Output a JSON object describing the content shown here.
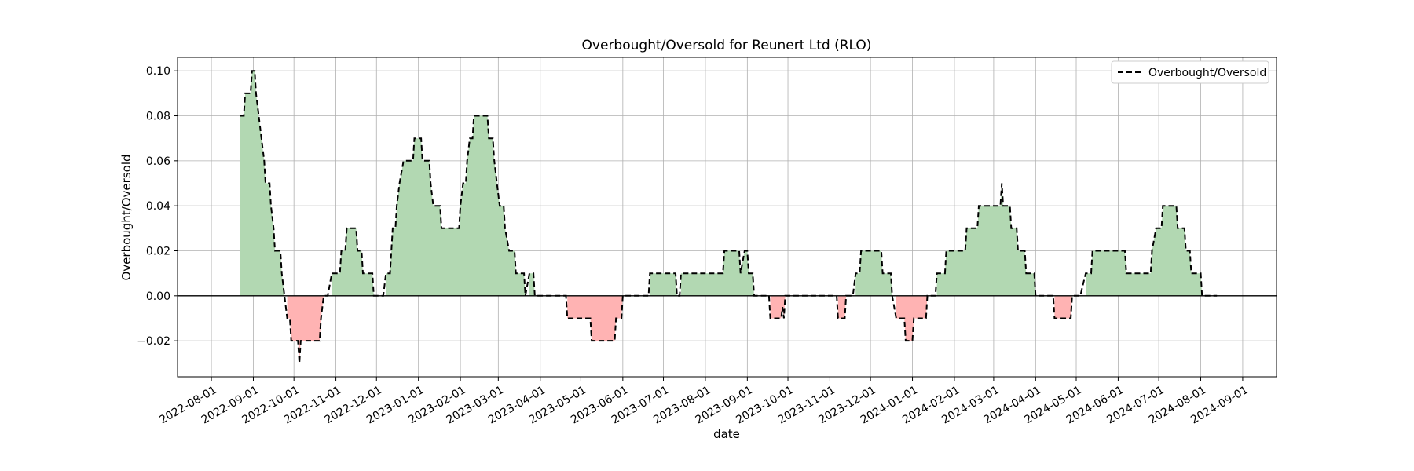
{
  "chart_data": {
    "type": "area",
    "title": "Overbought/Oversold for Reunert Ltd (RLO)",
    "xlabel": "date",
    "ylabel": "Overbought/Oversold",
    "legend": {
      "entries": [
        "Overbought/Oversold"
      ],
      "placement": "top-right"
    },
    "grid": true,
    "xlim": [
      "2022-07-07",
      "2024-09-26"
    ],
    "ylim": [
      -0.036,
      0.106
    ],
    "x_ticks": [
      "2022-08-01",
      "2022-09-01",
      "2022-10-01",
      "2022-11-01",
      "2022-12-01",
      "2023-01-01",
      "2023-02-01",
      "2023-03-01",
      "2023-04-01",
      "2023-05-01",
      "2023-06-01",
      "2023-07-01",
      "2023-08-01",
      "2023-09-01",
      "2023-10-01",
      "2023-11-01",
      "2023-12-01",
      "2024-01-01",
      "2024-02-01",
      "2024-03-01",
      "2024-04-01",
      "2024-05-01",
      "2024-06-01",
      "2024-07-01",
      "2024-08-01",
      "2024-09-01"
    ],
    "y_ticks": [
      -0.02,
      0.0,
      0.02,
      0.04,
      0.06,
      0.08,
      0.1
    ],
    "y_tick_labels": [
      "−0.02",
      "0.00",
      "0.02",
      "0.04",
      "0.06",
      "0.08",
      "0.10"
    ],
    "fill_positive_color": "#b2d8b2",
    "fill_negative_color": "#ffb3b3",
    "series": [
      {
        "name": "Overbought/Oversold",
        "line_color": "#000000",
        "line_style": "dashed",
        "points": [
          [
            "2022-08-22",
            0.08
          ],
          [
            "2022-08-25",
            0.08
          ],
          [
            "2022-08-26",
            0.09
          ],
          [
            "2022-08-30",
            0.09
          ],
          [
            "2022-08-31",
            0.1
          ],
          [
            "2022-09-02",
            0.1
          ],
          [
            "2022-09-03",
            0.09
          ],
          [
            "2022-09-05",
            0.08
          ],
          [
            "2022-09-07",
            0.07
          ],
          [
            "2022-09-09",
            0.06
          ],
          [
            "2022-09-10",
            0.05
          ],
          [
            "2022-09-13",
            0.05
          ],
          [
            "2022-09-14",
            0.04
          ],
          [
            "2022-09-16",
            0.03
          ],
          [
            "2022-09-17",
            0.02
          ],
          [
            "2022-09-21",
            0.02
          ],
          [
            "2022-09-22",
            0.01
          ],
          [
            "2022-09-24",
            0.0
          ],
          [
            "2022-09-26",
            -0.01
          ],
          [
            "2022-09-28",
            -0.01
          ],
          [
            "2022-09-29",
            -0.02
          ],
          [
            "2022-10-04",
            -0.02
          ],
          [
            "2022-10-05",
            -0.03
          ],
          [
            "2022-10-06",
            -0.02
          ],
          [
            "2022-10-20",
            -0.02
          ],
          [
            "2022-10-21",
            -0.01
          ],
          [
            "2022-10-23",
            0.0
          ],
          [
            "2022-10-26",
            0.0
          ],
          [
            "2022-10-29",
            0.01
          ],
          [
            "2022-11-04",
            0.01
          ],
          [
            "2022-11-05",
            0.02
          ],
          [
            "2022-11-08",
            0.02
          ],
          [
            "2022-11-09",
            0.03
          ],
          [
            "2022-11-16",
            0.03
          ],
          [
            "2022-11-17",
            0.02
          ],
          [
            "2022-11-20",
            0.02
          ],
          [
            "2022-11-21",
            0.01
          ],
          [
            "2022-11-28",
            0.01
          ],
          [
            "2022-11-29",
            0.0
          ],
          [
            "2022-12-06",
            0.0
          ],
          [
            "2022-12-08",
            0.01
          ],
          [
            "2022-12-11",
            0.01
          ],
          [
            "2022-12-12",
            0.02
          ],
          [
            "2022-12-13",
            0.03
          ],
          [
            "2022-12-15",
            0.03
          ],
          [
            "2022-12-16",
            0.04
          ],
          [
            "2022-12-18",
            0.05
          ],
          [
            "2022-12-21",
            0.06
          ],
          [
            "2022-12-28",
            0.06
          ],
          [
            "2022-12-29",
            0.07
          ],
          [
            "2023-01-03",
            0.07
          ],
          [
            "2023-01-04",
            0.06
          ],
          [
            "2023-01-09",
            0.06
          ],
          [
            "2023-01-10",
            0.05
          ],
          [
            "2023-01-12",
            0.04
          ],
          [
            "2023-01-17",
            0.04
          ],
          [
            "2023-01-18",
            0.03
          ],
          [
            "2023-01-31",
            0.03
          ],
          [
            "2023-02-01",
            0.04
          ],
          [
            "2023-02-03",
            0.05
          ],
          [
            "2023-02-05",
            0.05
          ],
          [
            "2023-02-06",
            0.06
          ],
          [
            "2023-02-08",
            0.07
          ],
          [
            "2023-02-10",
            0.07
          ],
          [
            "2023-02-11",
            0.08
          ],
          [
            "2023-02-21",
            0.08
          ],
          [
            "2023-02-22",
            0.07
          ],
          [
            "2023-02-25",
            0.07
          ],
          [
            "2023-02-26",
            0.06
          ],
          [
            "2023-02-28",
            0.05
          ],
          [
            "2023-03-02",
            0.04
          ],
          [
            "2023-03-05",
            0.04
          ],
          [
            "2023-03-06",
            0.03
          ],
          [
            "2023-03-09",
            0.02
          ],
          [
            "2023-03-13",
            0.02
          ],
          [
            "2023-03-14",
            0.01
          ],
          [
            "2023-03-20",
            0.01
          ],
          [
            "2023-03-21",
            0.0
          ],
          [
            "2023-03-24",
            0.01
          ],
          [
            "2023-03-27",
            0.01
          ],
          [
            "2023-03-28",
            0.0
          ],
          [
            "2023-04-20",
            0.0
          ],
          [
            "2023-04-21",
            -0.01
          ],
          [
            "2023-05-08",
            -0.01
          ],
          [
            "2023-05-09",
            -0.02
          ],
          [
            "2023-05-26",
            -0.02
          ],
          [
            "2023-05-27",
            -0.01
          ],
          [
            "2023-05-31",
            -0.01
          ],
          [
            "2023-06-01",
            0.0
          ],
          [
            "2023-06-20",
            0.0
          ],
          [
            "2023-06-21",
            0.01
          ],
          [
            "2023-07-10",
            0.01
          ],
          [
            "2023-07-11",
            0.0
          ],
          [
            "2023-07-13",
            0.0
          ],
          [
            "2023-07-14",
            0.01
          ],
          [
            "2023-08-14",
            0.01
          ],
          [
            "2023-08-15",
            0.02
          ],
          [
            "2023-08-26",
            0.02
          ],
          [
            "2023-08-27",
            0.01
          ],
          [
            "2023-08-30",
            0.02
          ],
          [
            "2023-09-01",
            0.02
          ],
          [
            "2023-09-02",
            0.01
          ],
          [
            "2023-09-05",
            0.01
          ],
          [
            "2023-09-06",
            0.0
          ],
          [
            "2023-09-17",
            0.0
          ],
          [
            "2023-09-18",
            -0.01
          ],
          [
            "2023-09-26",
            -0.01
          ],
          [
            "2023-09-27",
            -0.005
          ],
          [
            "2023-09-28",
            -0.01
          ],
          [
            "2023-09-29",
            0.0
          ],
          [
            "2023-11-06",
            0.0
          ],
          [
            "2023-11-07",
            -0.01
          ],
          [
            "2023-11-12",
            -0.01
          ],
          [
            "2023-11-13",
            0.0
          ],
          [
            "2023-11-18",
            0.0
          ],
          [
            "2023-11-20",
            0.01
          ],
          [
            "2023-11-23",
            0.01
          ],
          [
            "2023-11-24",
            0.02
          ],
          [
            "2023-12-09",
            0.02
          ],
          [
            "2023-12-10",
            0.01
          ],
          [
            "2023-12-16",
            0.01
          ],
          [
            "2023-12-17",
            0.0
          ],
          [
            "2023-12-20",
            -0.01
          ],
          [
            "2023-12-26",
            -0.01
          ],
          [
            "2023-12-27",
            -0.02
          ],
          [
            "2024-01-01",
            -0.02
          ],
          [
            "2024-01-02",
            -0.01
          ],
          [
            "2024-01-11",
            -0.01
          ],
          [
            "2024-01-12",
            0.0
          ],
          [
            "2024-01-18",
            0.0
          ],
          [
            "2024-01-19",
            0.01
          ],
          [
            "2024-01-25",
            0.01
          ],
          [
            "2024-01-26",
            0.02
          ],
          [
            "2024-02-09",
            0.02
          ],
          [
            "2024-02-10",
            0.03
          ],
          [
            "2024-02-18",
            0.03
          ],
          [
            "2024-02-19",
            0.04
          ],
          [
            "2024-03-06",
            0.04
          ],
          [
            "2024-03-07",
            0.05
          ],
          [
            "2024-03-08",
            0.04
          ],
          [
            "2024-03-13",
            0.04
          ],
          [
            "2024-03-14",
            0.03
          ],
          [
            "2024-03-18",
            0.03
          ],
          [
            "2024-03-19",
            0.02
          ],
          [
            "2024-03-24",
            0.02
          ],
          [
            "2024-03-25",
            0.01
          ],
          [
            "2024-03-31",
            0.01
          ],
          [
            "2024-04-01",
            0.0
          ],
          [
            "2024-04-14",
            0.0
          ],
          [
            "2024-04-15",
            -0.01
          ],
          [
            "2024-04-27",
            -0.01
          ],
          [
            "2024-04-28",
            0.0
          ],
          [
            "2024-05-04",
            0.0
          ],
          [
            "2024-05-08",
            0.01
          ],
          [
            "2024-05-12",
            0.01
          ],
          [
            "2024-05-13",
            0.02
          ],
          [
            "2024-06-06",
            0.02
          ],
          [
            "2024-06-07",
            0.01
          ],
          [
            "2024-06-25",
            0.01
          ],
          [
            "2024-06-26",
            0.02
          ],
          [
            "2024-06-29",
            0.03
          ],
          [
            "2024-07-03",
            0.03
          ],
          [
            "2024-07-04",
            0.04
          ],
          [
            "2024-07-14",
            0.04
          ],
          [
            "2024-07-15",
            0.03
          ],
          [
            "2024-07-20",
            0.03
          ],
          [
            "2024-07-21",
            0.02
          ],
          [
            "2024-07-24",
            0.02
          ],
          [
            "2024-07-25",
            0.01
          ],
          [
            "2024-08-01",
            0.01
          ],
          [
            "2024-08-02",
            0.0
          ],
          [
            "2024-08-13",
            0.0
          ]
        ]
      }
    ]
  }
}
